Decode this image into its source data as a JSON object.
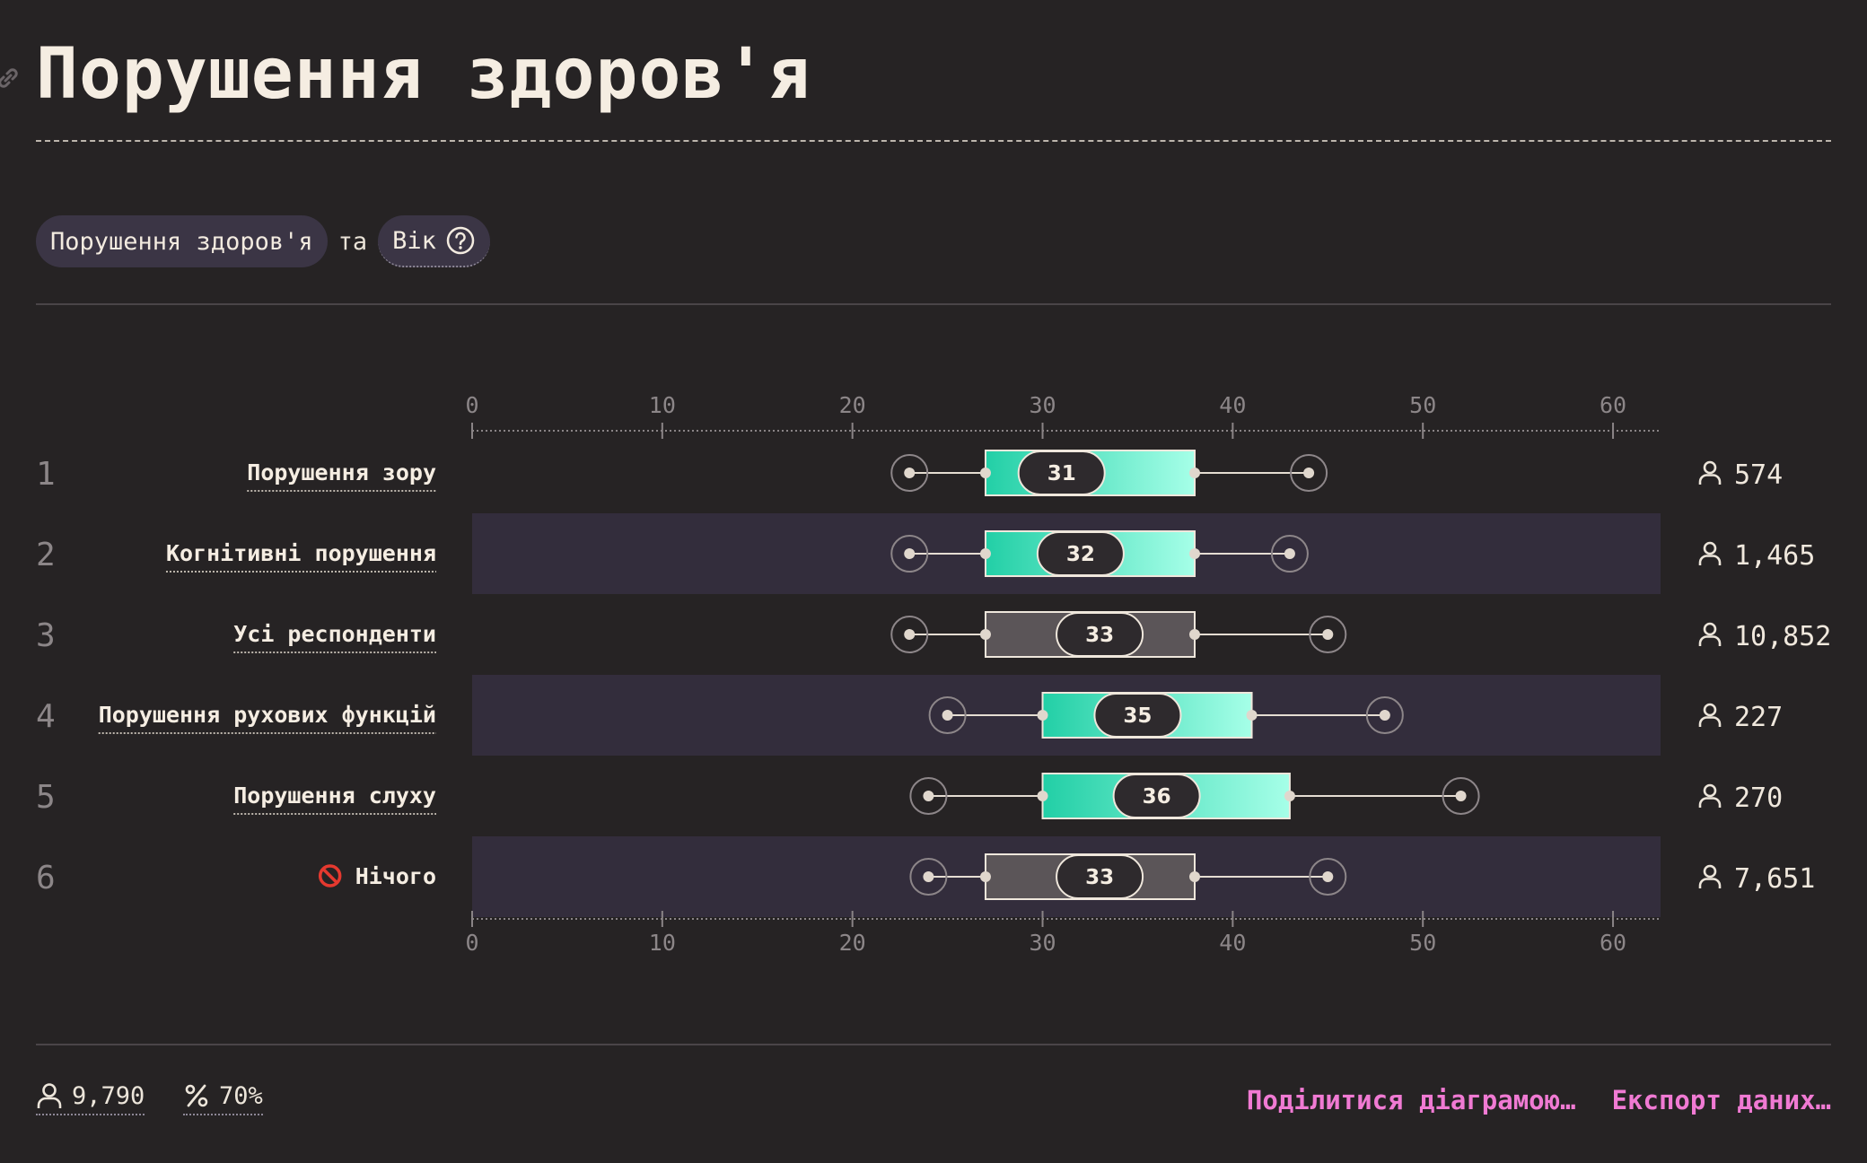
{
  "title": "Порушення здоров'я",
  "filters": {
    "variable_a": "Порушення здоров'я",
    "connector": "та",
    "variable_b": "Вік"
  },
  "icons": {
    "link": "link-icon",
    "help": "help-circle-icon",
    "respondents": "person-icon",
    "percent": "percent-icon",
    "no_entry": "no-entry-icon"
  },
  "colors": {
    "background": "#262324",
    "accent_start": "#22cfa6",
    "accent_end": "#a6ffe8",
    "reference_box": "#5b5558",
    "band": "#332d3c",
    "link": "#f07ad3"
  },
  "chart_data": {
    "type": "boxplot",
    "xlim": [
      0,
      62.5
    ],
    "x_ticks": [
      0,
      10,
      20,
      30,
      40,
      50,
      60
    ],
    "grid": false,
    "rows": [
      {
        "rank": "1",
        "label": "Порушення зору",
        "min": 23,
        "q1": 27,
        "median": 31,
        "q3": 38,
        "max": 44,
        "count": "574",
        "highlight": true
      },
      {
        "rank": "2",
        "label": "Когнітивні порушення",
        "min": 23,
        "q1": 27,
        "median": 32,
        "q3": 38,
        "max": 43,
        "count": "1,465",
        "highlight": true
      },
      {
        "rank": "3",
        "label": "Усі респонденти",
        "min": 23,
        "q1": 27,
        "median": 33,
        "q3": 38,
        "max": 45,
        "count": "10,852",
        "highlight": false
      },
      {
        "rank": "4",
        "label": "Порушення рухових функцій",
        "min": 25,
        "q1": 30,
        "median": 35,
        "q3": 41,
        "max": 48,
        "count": "227",
        "highlight": true
      },
      {
        "rank": "5",
        "label": "Порушення слуху",
        "min": 24,
        "q1": 30,
        "median": 36,
        "q3": 43,
        "max": 52,
        "count": "270",
        "highlight": true
      },
      {
        "rank": "6",
        "label": "Нічого",
        "icon": "no-entry-icon",
        "min": 24,
        "q1": 27,
        "median": 33,
        "q3": 38,
        "max": 45,
        "count": "7,651",
        "highlight": false
      }
    ]
  },
  "footer": {
    "total_respondents": "9,790",
    "percent": "70%",
    "share_label": "Поділитися діаграмою…",
    "export_label": "Експорт даних…"
  }
}
